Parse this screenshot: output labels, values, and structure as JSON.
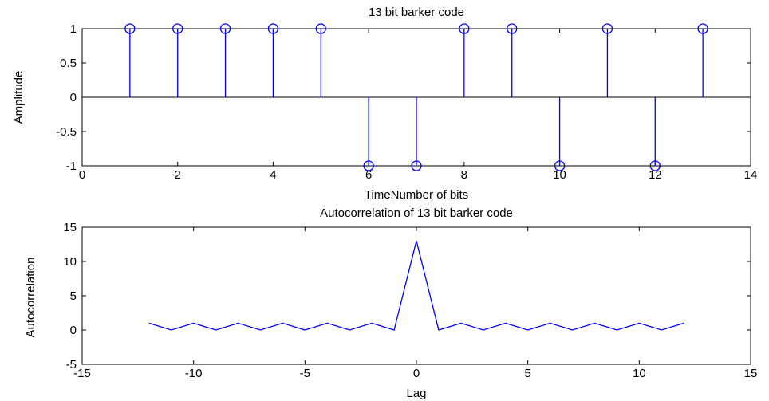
{
  "chart_data": [
    {
      "type": "stem",
      "title": "13 bit barker code",
      "xlabel": "TimeNumber of bits",
      "ylabel": "Amplitude",
      "xlim": [
        0,
        14
      ],
      "ylim": [
        -1,
        1
      ],
      "xticks": [
        0,
        2,
        4,
        6,
        8,
        10,
        12,
        14
      ],
      "yticks": [
        -1,
        -0.5,
        0,
        0.5,
        1
      ],
      "xtick_labels": [
        "0",
        "2",
        "4",
        "6",
        "8",
        "10",
        "12",
        "14"
      ],
      "ytick_labels": [
        "-1",
        "-0.5",
        "0",
        "0.5",
        "1"
      ],
      "grid": false,
      "color": "#0000ff",
      "series": [
        {
          "x": [
            1,
            2,
            3,
            4,
            5,
            6,
            7,
            8,
            9,
            10,
            11,
            12,
            13
          ],
          "values": [
            1,
            1,
            1,
            1,
            1,
            -1,
            -1,
            1,
            1,
            -1,
            1,
            -1,
            1
          ]
        }
      ]
    },
    {
      "type": "line",
      "title": "Autocorrelation of 13 bit barker code",
      "xlabel": "Lag",
      "ylabel": "Autocorrelation",
      "xlim": [
        -15,
        15
      ],
      "ylim": [
        -5,
        15
      ],
      "xticks": [
        -15,
        -10,
        -5,
        0,
        5,
        10,
        15
      ],
      "yticks": [
        -5,
        0,
        5,
        10,
        15
      ],
      "xtick_labels": [
        "-15",
        "-10",
        "-5",
        "0",
        "5",
        "10",
        "15"
      ],
      "ytick_labels": [
        "-5",
        "0",
        "5",
        "10",
        "15"
      ],
      "grid": false,
      "color": "#0000ff",
      "series": [
        {
          "x": [
            -12,
            -11,
            -10,
            -9,
            -8,
            -7,
            -6,
            -5,
            -4,
            -3,
            -2,
            -1,
            0,
            1,
            2,
            3,
            4,
            5,
            6,
            7,
            8,
            9,
            10,
            11,
            12
          ],
          "values": [
            1,
            0,
            1,
            0,
            1,
            0,
            1,
            0,
            1,
            0,
            1,
            0,
            13,
            0,
            1,
            0,
            1,
            0,
            1,
            0,
            1,
            0,
            1,
            0,
            1
          ]
        }
      ]
    }
  ]
}
